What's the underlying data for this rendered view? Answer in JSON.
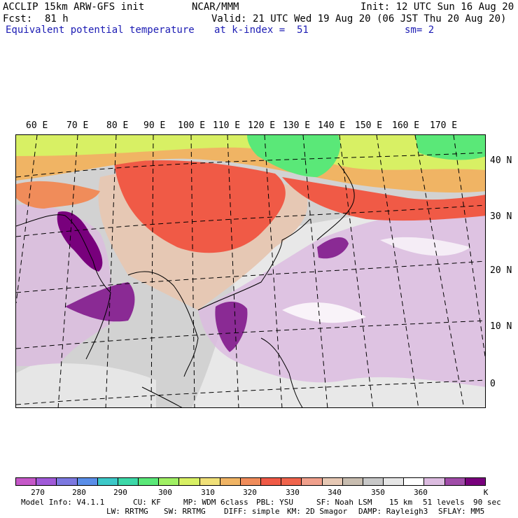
{
  "header": {
    "model": "ACCLIP 15km ARW-GFS init",
    "org": "NCAR/MMM",
    "init": "Init: 12 UTC Sun 16 Aug 20",
    "fcst_label": "Fcst:",
    "fcst_value": "81 h",
    "valid": "Valid: 21 UTC Wed 19 Aug 20 (06 JST Thu 20 Aug 20)",
    "field": "Equivalent potential temperature",
    "level": "at k-index =  51",
    "smooth": "sm= 2"
  },
  "map": {
    "lon_labels": [
      "60 E",
      "70 E",
      "80 E",
      "90 E",
      "100 E",
      "110 E",
      "120 E",
      "130 E",
      "140 E",
      "150 E",
      "160 E",
      "170 E"
    ],
    "lat_labels": [
      "40 N",
      "30 N",
      "20 N",
      "10 N",
      "0"
    ]
  },
  "colorbar": {
    "colors": [
      "#c558c8",
      "#a05ad8",
      "#7c78e0",
      "#5a8ee8",
      "#3cc8c8",
      "#3cd8a8",
      "#5ae878",
      "#a0f064",
      "#d8f064",
      "#f0e078",
      "#f0b464",
      "#f08c5a",
      "#f05a46",
      "#f0644c",
      "#f0a08c",
      "#e6c8b4",
      "#c8bdb0",
      "#c8c8c8",
      "#e6e6e6",
      "#ffffff",
      "#dcbce0",
      "#a04ca8",
      "#78007c"
    ],
    "labels": [
      "270",
      "280",
      "290",
      "300",
      "310",
      "320",
      "330",
      "340",
      "350",
      "360"
    ],
    "unit": "K"
  },
  "footer": {
    "line1": [
      "Model Info: V4.1.1",
      "CU: KF",
      "MP: WDM 6class",
      "PBL: YSU",
      "SF: Noah LSM",
      "15 km",
      "51 levels",
      "90 sec"
    ],
    "line2": [
      "LW: RRTMG",
      "SW: RRTMG",
      "DIFF: simple",
      "KM: 2D Smagor",
      "DAMP: Rayleigh3",
      "SFLAY: MM5"
    ]
  }
}
